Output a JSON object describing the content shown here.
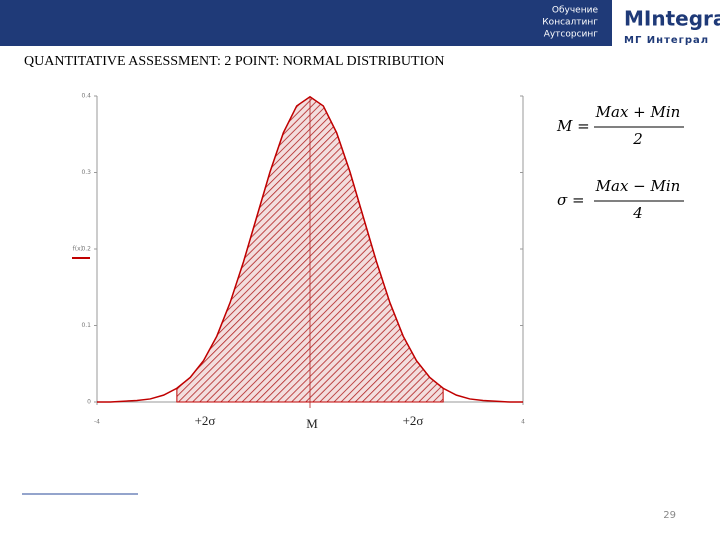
{
  "header": {
    "lines": [
      "Обучение",
      "Консалтинг",
      "Аутсорсинг"
    ],
    "logo_main": "MIntegral",
    "logo_sub": "МГ Интеграл"
  },
  "title": "QUANTITATIVE ASSESSMENT: 2 POINT: NORMAL DISTRIBUTION",
  "chart_data": {
    "type": "line",
    "ylabel": "f(x)",
    "color": "#c00000",
    "x": [
      -4,
      -3.75,
      -3.5,
      -3.25,
      -3,
      -2.75,
      -2.5,
      -2.25,
      -2,
      -1.75,
      -1.5,
      -1.25,
      -1,
      -0.75,
      -0.5,
      -0.25,
      0,
      0.25,
      0.5,
      0.75,
      1,
      1.25,
      1.5,
      1.75,
      2,
      2.25,
      2.5,
      2.75,
      3,
      3.25,
      3.5,
      3.75,
      4
    ],
    "values": [
      0.0,
      0.0,
      0.001,
      0.002,
      0.004,
      0.009,
      0.018,
      0.032,
      0.054,
      0.086,
      0.13,
      0.183,
      0.242,
      0.301,
      0.352,
      0.387,
      0.399,
      0.387,
      0.352,
      0.301,
      0.242,
      0.183,
      0.13,
      0.086,
      0.054,
      0.032,
      0.018,
      0.009,
      0.004,
      0.002,
      0.001,
      0.0,
      0.0
    ],
    "shade_xlim": [
      -2.5,
      2.5
    ],
    "xlim": [
      -4,
      4
    ],
    "xticks": [
      -4,
      4
    ],
    "ylim": [
      0,
      0.4
    ],
    "yticks": [
      0,
      0.1,
      0.2,
      0.3,
      0.4
    ],
    "annotations": [
      "+2σ",
      "M",
      "+2σ"
    ]
  },
  "formulas": [
    {
      "lhs": "M =",
      "numerator": "Max + Min",
      "denominator": "2"
    },
    {
      "lhs": "σ =",
      "numerator": "Max − Min",
      "denominator": "4"
    }
  ],
  "page_number": "29"
}
